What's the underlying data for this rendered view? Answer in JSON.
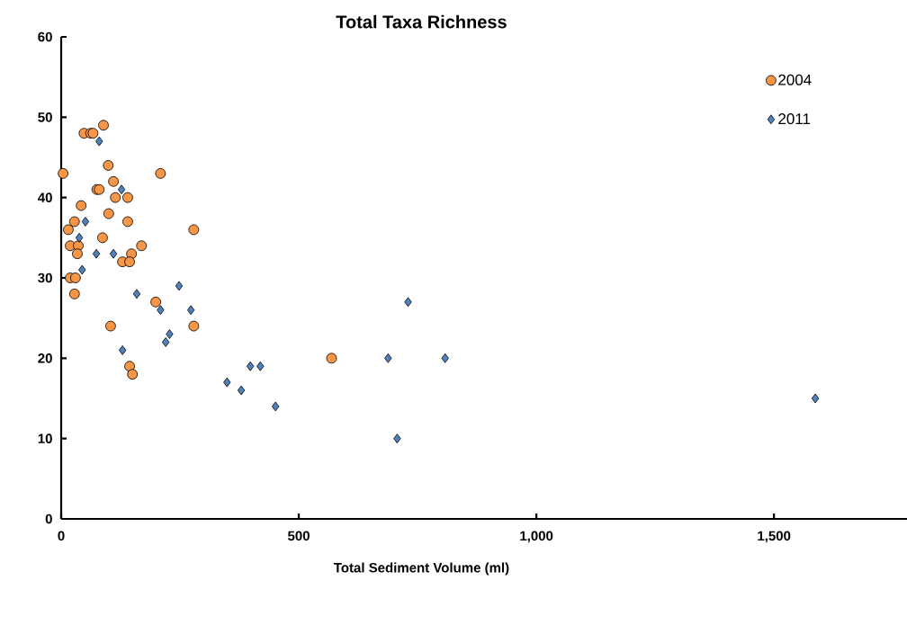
{
  "chart_data": {
    "type": "scatter",
    "title": "Total Taxa Richness",
    "xlabel": "Total Sediment Volume (ml)",
    "xlim": [
      0,
      1780
    ],
    "ylim": [
      0,
      60
    ],
    "xticks": [
      0,
      500,
      {
        "value": 1000,
        "label": "1,000"
      },
      {
        "value": 1500,
        "label": "1,500"
      }
    ],
    "yticks": [
      0,
      10,
      20,
      30,
      40,
      50,
      60
    ],
    "legend": "top right",
    "series": [
      {
        "name": "2004",
        "color": "#f79646",
        "marker": "circle",
        "x": [
          89,
          48,
          62,
          67,
          99,
          4,
          209,
          110,
          75,
          80,
          114,
          140,
          42,
          100,
          28,
          140,
          279,
          15,
          87,
          19,
          36,
          169,
          34,
          148,
          129,
          144,
          19,
          30,
          28,
          199,
          104,
          279,
          144,
          150,
          569
        ],
        "values": [
          49,
          48,
          48,
          48,
          44,
          43,
          43,
          42,
          41,
          41,
          40,
          40,
          39,
          38,
          37,
          37,
          36,
          36,
          35,
          34,
          34,
          34,
          33,
          33,
          32,
          32,
          30,
          30,
          28,
          27,
          24,
          24,
          19,
          18,
          20
        ]
      },
      {
        "name": "2011",
        "color": "#4f81bd",
        "marker": "diamond",
        "x": [
          80,
          127,
          51,
          38,
          74,
          110,
          44,
          159,
          248,
          209,
          273,
          228,
          220,
          129,
          398,
          419,
          349,
          379,
          451,
          688,
          808,
          730,
          707,
          1587
        ],
        "values": [
          47,
          41,
          37,
          35,
          33,
          33,
          31,
          28,
          29,
          26,
          26,
          23,
          22,
          21,
          19,
          19,
          17,
          16,
          14,
          20,
          20,
          27,
          10,
          15
        ]
      }
    ]
  }
}
